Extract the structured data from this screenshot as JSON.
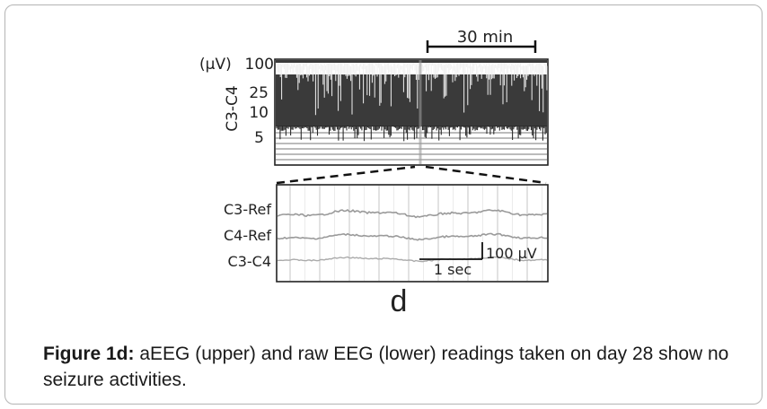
{
  "figure": {
    "aeeg": {
      "unit_label": "(μV)",
      "channel": "C3-C4",
      "y_ticks": [
        "100",
        "25",
        "10",
        "5"
      ],
      "time_scale": "30 min"
    },
    "raw_eeg": {
      "channels": [
        "C3-Ref",
        "C4-Ref",
        "C3-C4"
      ],
      "amplitude_scale": "100 μV",
      "time_scale": "1 sec"
    },
    "panel_letter": "d"
  },
  "caption": {
    "label": "Figure 1d:",
    "text": " aEEG (upper) and raw EEG (lower) readings taken on day 28 show no seizure activities."
  }
}
